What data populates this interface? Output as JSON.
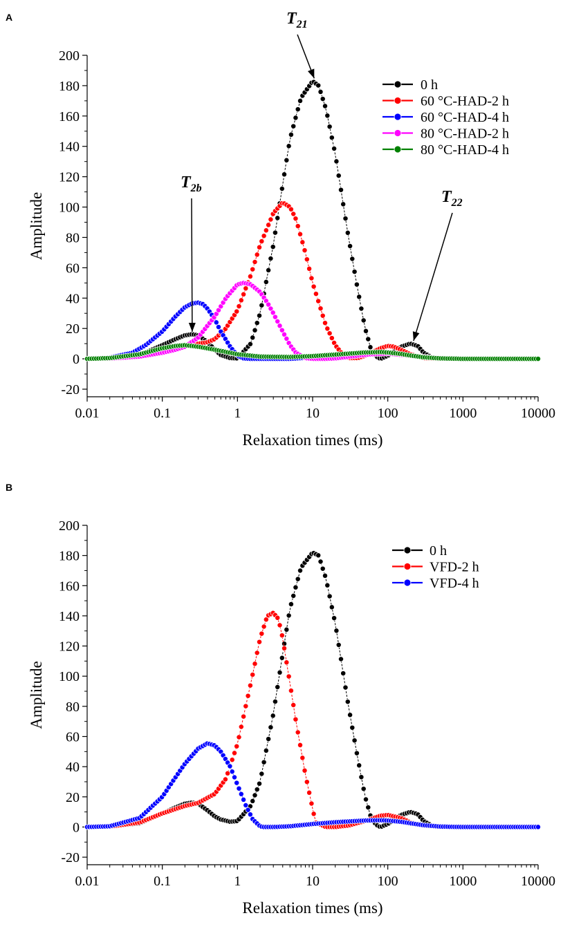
{
  "chart_data": [
    {
      "panel_label": "A",
      "type": "line",
      "xscale": "log",
      "xlabel": "Relaxation times (ms)",
      "ylabel": "Amplitude",
      "xlim": [
        0.01,
        10000
      ],
      "ylim": [
        -25,
        200
      ],
      "xticks": [
        0.01,
        0.1,
        1,
        10,
        100,
        1000,
        10000
      ],
      "xtick_labels": [
        "0.01",
        "0.1",
        "1",
        "10",
        "100",
        "1000",
        "10000"
      ],
      "yticks": [
        -20,
        0,
        20,
        40,
        60,
        80,
        100,
        120,
        140,
        160,
        180,
        200
      ],
      "ytick_labels": [
        "-20",
        "0",
        "20",
        "40",
        "60",
        "80",
        "100",
        "120",
        "140",
        "160",
        "180",
        "200"
      ],
      "legend_position": "top-right",
      "series": [
        {
          "name": "0 h",
          "color": "#000000",
          "x": [
            0.01,
            0.02,
            0.05,
            0.1,
            0.15,
            0.2,
            0.25,
            0.3,
            0.4,
            0.5,
            0.6,
            0.8,
            1,
            1.5,
            2,
            3,
            4,
            5,
            7,
            10,
            12,
            15,
            20,
            30,
            40,
            50,
            60,
            70,
            80,
            100,
            150,
            200,
            250,
            300,
            400,
            600,
            1000,
            10000
          ],
          "y": [
            0,
            0.3,
            2.5,
            9,
            13,
            15.5,
            16.2,
            15.5,
            11,
            6,
            2.5,
            0.5,
            0.3,
            10,
            30,
            75,
            115,
            145,
            172,
            183,
            180,
            165,
            135,
            80,
            45,
            20,
            6,
            1.5,
            0,
            2,
            8,
            10,
            8.5,
            4,
            0.5,
            0,
            0,
            0
          ]
        },
        {
          "name": "60 °C-HAD-2 h",
          "color": "#ff0000",
          "x": [
            0.01,
            0.02,
            0.05,
            0.1,
            0.2,
            0.3,
            0.4,
            0.5,
            0.7,
            1,
            1.5,
            2,
            3,
            4,
            5,
            6,
            8,
            10,
            15,
            20,
            25,
            30,
            40,
            50,
            60,
            80,
            100,
            120,
            150,
            200,
            300,
            500,
            1000,
            10000
          ],
          "y": [
            0,
            0.3,
            2,
            6,
            9,
            10,
            11,
            13,
            20,
            32,
            55,
            75,
            96,
            103,
            100,
            92,
            70,
            50,
            22,
            9,
            3,
            0.5,
            0.5,
            2,
            4,
            7,
            8.5,
            8,
            6,
            3,
            0.5,
            0,
            0,
            0
          ]
        },
        {
          "name": "60 °C-HAD-4 h",
          "color": "#0000ff",
          "x": [
            0.01,
            0.02,
            0.04,
            0.06,
            0.1,
            0.15,
            0.2,
            0.25,
            0.3,
            0.35,
            0.4,
            0.5,
            0.6,
            0.8,
            1,
            1.2,
            1.5,
            2,
            5,
            10,
            20,
            40,
            60,
            100,
            150,
            200,
            300,
            500,
            1000,
            10000
          ],
          "y": [
            0,
            0.8,
            4,
            9,
            18,
            28,
            34,
            36.5,
            37,
            36,
            33,
            26,
            18,
            8,
            2,
            0.3,
            0,
            0,
            0,
            1,
            2.5,
            4,
            4.5,
            4,
            3,
            2,
            1,
            0.3,
            0,
            0
          ]
        },
        {
          "name": "80 °C-HAD-2 h",
          "color": "#ff00ff",
          "x": [
            0.01,
            0.02,
            0.05,
            0.1,
            0.15,
            0.2,
            0.3,
            0.5,
            0.7,
            1,
            1.2,
            1.5,
            2,
            2.5,
            3,
            4,
            5,
            6,
            8,
            10,
            15,
            20,
            40,
            60,
            100,
            200,
            500,
            1000,
            10000
          ],
          "y": [
            0,
            0.2,
            1.5,
            4,
            6,
            8,
            14,
            28,
            40,
            49,
            50,
            49,
            44,
            37,
            30,
            18,
            9,
            4,
            0.5,
            0,
            0,
            0.3,
            2,
            3,
            3.5,
            2,
            0.5,
            0,
            0
          ]
        },
        {
          "name": "80 °C-HAD-4 h",
          "color": "#008000",
          "x": [
            0.01,
            0.02,
            0.05,
            0.1,
            0.15,
            0.2,
            0.3,
            0.5,
            1,
            2,
            5,
            10,
            20,
            50,
            80,
            100,
            150,
            200,
            300,
            500,
            1000,
            10000
          ],
          "y": [
            0,
            0.5,
            3,
            7,
            8.5,
            9,
            8,
            6,
            3,
            1.5,
            1.2,
            1.8,
            2.8,
            4.2,
            4.5,
            4.2,
            3.2,
            2.2,
            1,
            0.3,
            0,
            0
          ]
        }
      ],
      "annotations": [
        {
          "text_main": "T",
          "text_sub": "21",
          "points_to": [
            10.5,
            183
          ]
        },
        {
          "text_main": "T",
          "text_sub": "2b",
          "points_to": [
            0.25,
            16
          ]
        },
        {
          "text_main": "T",
          "text_sub": "22",
          "points_to": [
            220,
            10
          ]
        }
      ]
    },
    {
      "panel_label": "B",
      "type": "line",
      "xscale": "log",
      "xlabel": "Relaxation times (ms)",
      "ylabel": "Amplitude",
      "xlim": [
        0.01,
        10000
      ],
      "ylim": [
        -25,
        200
      ],
      "xticks": [
        0.01,
        0.1,
        1,
        10,
        100,
        1000,
        10000
      ],
      "xtick_labels": [
        "0.01",
        "0.1",
        "1",
        "10",
        "100",
        "1000",
        "10000"
      ],
      "yticks": [
        -20,
        0,
        20,
        40,
        60,
        80,
        100,
        120,
        140,
        160,
        180,
        200
      ],
      "ytick_labels": [
        "-20",
        "0",
        "20",
        "40",
        "60",
        "80",
        "100",
        "120",
        "140",
        "160",
        "180",
        "200"
      ],
      "legend_position": "top-right",
      "series": [
        {
          "name": "0 h",
          "color": "#000000",
          "x": [
            0.01,
            0.02,
            0.05,
            0.1,
            0.15,
            0.2,
            0.25,
            0.3,
            0.4,
            0.5,
            0.6,
            0.8,
            1,
            1.5,
            2,
            3,
            4,
            5,
            7,
            10,
            12,
            15,
            20,
            30,
            40,
            50,
            60,
            70,
            80,
            100,
            150,
            200,
            250,
            300,
            400,
            600,
            1000,
            10000
          ],
          "y": [
            0,
            0.3,
            2.5,
            9,
            13,
            15.5,
            16.2,
            15.5,
            11,
            7,
            5,
            3.5,
            4,
            14,
            30,
            75,
            115,
            145,
            172,
            182,
            180,
            165,
            135,
            80,
            45,
            20,
            6,
            1.5,
            0,
            2,
            8,
            10,
            8.5,
            4,
            0.5,
            0,
            0,
            0
          ]
        },
        {
          "name": "VFD-2 h",
          "color": "#ff0000",
          "x": [
            0.01,
            0.02,
            0.05,
            0.1,
            0.2,
            0.3,
            0.5,
            0.7,
            1,
            1.5,
            2,
            2.5,
            3,
            3.5,
            4,
            5,
            6,
            8,
            10,
            11,
            15,
            20,
            30,
            50,
            80,
            100,
            150,
            200,
            300,
            500,
            1000,
            10000
          ],
          "y": [
            0,
            0.3,
            3,
            9,
            14,
            16,
            22,
            32,
            55,
            95,
            125,
            140,
            142,
            138,
            125,
            95,
            70,
            35,
            12,
            3,
            0,
            0,
            1,
            4,
            7.5,
            8,
            6,
            3,
            1,
            0,
            0,
            0
          ]
        },
        {
          "name": "VFD-4 h",
          "color": "#0000ff",
          "x": [
            0.01,
            0.02,
            0.05,
            0.1,
            0.15,
            0.2,
            0.3,
            0.4,
            0.5,
            0.6,
            0.8,
            1,
            1.3,
            1.6,
            2,
            2.2,
            3,
            5,
            10,
            20,
            50,
            80,
            100,
            150,
            200,
            300,
            500,
            1000,
            10000
          ],
          "y": [
            0,
            0.5,
            6,
            20,
            33,
            42,
            52,
            55.5,
            54,
            50,
            40,
            28,
            14,
            5,
            0.5,
            0,
            0,
            0.5,
            2,
            3.2,
            4.3,
            4.5,
            4.3,
            3.5,
            2.5,
            1.2,
            0.3,
            0,
            0
          ]
        }
      ],
      "annotations": []
    }
  ]
}
